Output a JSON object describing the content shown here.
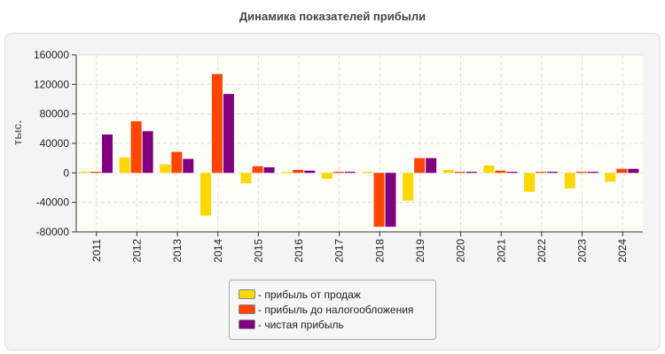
{
  "chart_data": {
    "type": "bar",
    "title": "Динамика показателей прибыли",
    "ylabel": "тыс.",
    "xlabel": "",
    "ylim": [
      -80000,
      160000
    ],
    "yticks": [
      160000,
      120000,
      80000,
      40000,
      0,
      -40000,
      -80000
    ],
    "grid": true,
    "legend_position": "bottom",
    "categories": [
      "2011",
      "2012",
      "2013",
      "2014",
      "2015",
      "2016",
      "2017",
      "2018",
      "2019",
      "2020",
      "2021",
      "2022",
      "2023",
      "2024"
    ],
    "series": [
      {
        "name": "- прибыль от продаж",
        "color": "#ffd700",
        "values": [
          1500,
          21000,
          11500,
          -58000,
          -14000,
          1500,
          -8000,
          1500,
          -37500,
          4000,
          10000,
          -25500,
          -21000,
          -12000
        ]
      },
      {
        "name": "- прибыль до налогообложения",
        "color": "#ff4500",
        "values": [
          1500,
          70000,
          28500,
          134000,
          9000,
          4000,
          1500,
          -73000,
          20000,
          1500,
          3000,
          1500,
          1500,
          5500
        ]
      },
      {
        "name": "- чистая прибыль",
        "color": "#800080",
        "values": [
          52000,
          56500,
          19000,
          107000,
          7500,
          3000,
          1500,
          -73000,
          20000,
          1500,
          1500,
          1500,
          1500,
          5500
        ]
      }
    ]
  }
}
